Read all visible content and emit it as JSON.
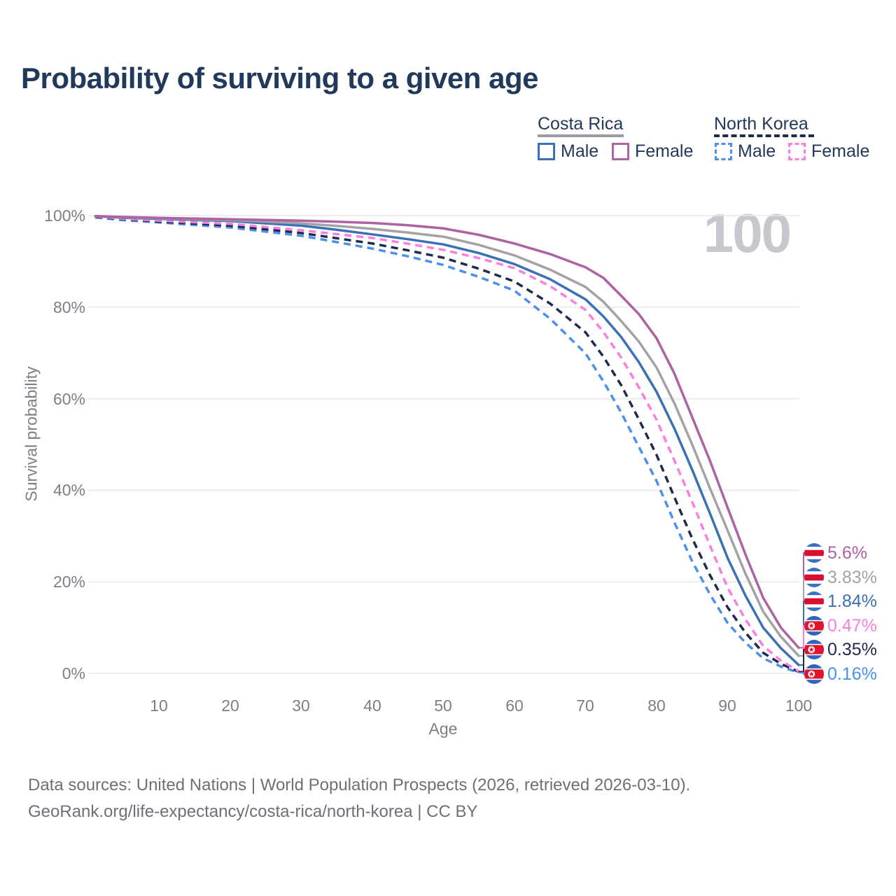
{
  "header": {
    "title": "Probability of surviving to a given age"
  },
  "legend": {
    "groups": [
      {
        "label": "Costa Rica",
        "line_style": "solid",
        "line_color": "#9b9ba1",
        "items": [
          {
            "label": "Male",
            "color": "#3b70b7",
            "style": "solid"
          },
          {
            "label": "Female",
            "color": "#ad62a2",
            "style": "solid"
          }
        ]
      },
      {
        "label": "North Korea",
        "line_style": "dashed",
        "line_color": "#1d2c4d",
        "items": [
          {
            "label": "Male",
            "color": "#4a90ec",
            "style": "dashed"
          },
          {
            "label": "Female",
            "color": "#fc7ede",
            "style": "dashed"
          }
        ]
      }
    ]
  },
  "chart_data": {
    "type": "line",
    "title": "Probability of surviving to a given age",
    "xlabel": "Age",
    "ylabel": "Survival probability",
    "xlim": [
      0,
      100
    ],
    "ylim": [
      0,
      100
    ],
    "grid": "horizontal",
    "grid_values": [
      0,
      20,
      40,
      60,
      80,
      100
    ],
    "x_tick_labels": [
      "10",
      "20",
      "30",
      "40",
      "50",
      "60",
      "70",
      "80",
      "90",
      "100"
    ],
    "y_tick_labels": [
      "100%",
      "80%",
      "60%",
      "40%",
      "20%",
      "0%"
    ],
    "watermark": "100",
    "x": [
      1,
      5,
      10,
      15,
      20,
      25,
      30,
      35,
      40,
      45,
      50,
      55,
      60,
      65,
      70,
      72.5,
      75,
      77.5,
      80,
      82.5,
      85,
      87.5,
      90,
      92.5,
      95,
      97.5,
      100
    ],
    "series": [
      {
        "name": "Costa Rica Female",
        "country": "Costa Rica",
        "sex": "Female",
        "color": "#ad62a2",
        "style": "solid",
        "end_label": "5.6%",
        "values": [
          99.9,
          99.7,
          99.5,
          99.35,
          99.2,
          99.05,
          98.9,
          98.65,
          98.4,
          97.9,
          97.2,
          95.8,
          93.9,
          91.6,
          88.7,
          86.4,
          82.5,
          78.5,
          73.2,
          65.5,
          56.0,
          46.5,
          36.2,
          26.0,
          16.5,
          10.0,
          5.6
        ]
      },
      {
        "name": "Costa Rica Total",
        "country": "Costa Rica",
        "sex": "Total",
        "color": "#a2a2a7",
        "style": "solid",
        "end_label": "3.83%",
        "values": [
          99.9,
          99.6,
          99.4,
          99.2,
          99.0,
          98.7,
          98.3,
          97.75,
          97.1,
          96.3,
          95.4,
          93.6,
          91.3,
          88.2,
          84.4,
          81.2,
          77.0,
          72.5,
          66.8,
          59.0,
          50.0,
          40.5,
          31.2,
          21.8,
          13.5,
          8.0,
          3.83
        ]
      },
      {
        "name": "Costa Rica Male",
        "country": "Costa Rica",
        "sex": "Male",
        "color": "#3b70b7",
        "style": "solid",
        "end_label": "1.84%",
        "values": [
          99.9,
          99.5,
          99.3,
          99.05,
          98.8,
          98.3,
          97.8,
          96.9,
          95.9,
          94.85,
          93.7,
          91.8,
          89.4,
          86.1,
          81.7,
          78.0,
          73.5,
          68.0,
          61.5,
          53.5,
          44.5,
          35.0,
          25.2,
          17.0,
          10.0,
          5.5,
          1.84
        ]
      },
      {
        "name": "North Korea Female",
        "country": "North Korea",
        "sex": "Female",
        "color": "#fc7ede",
        "style": "dashed",
        "end_label": "0.47%",
        "values": [
          99.8,
          99.3,
          98.9,
          98.55,
          98.2,
          97.5,
          96.8,
          95.95,
          95.1,
          93.85,
          92.5,
          90.7,
          88.5,
          84.6,
          79.4,
          74.6,
          69.0,
          62.5,
          55.4,
          46.5,
          37.5,
          28.0,
          18.7,
          11.8,
          6.0,
          2.8,
          0.47
        ]
      },
      {
        "name": "North Korea Total",
        "country": "North Korea",
        "sex": "Total",
        "color": "#1d2c4d",
        "style": "dashed",
        "end_label": "0.35%",
        "values": [
          99.7,
          99.2,
          98.7,
          98.25,
          97.8,
          97.0,
          96.2,
          95.05,
          93.9,
          92.4,
          90.8,
          88.4,
          85.6,
          80.8,
          74.5,
          69.2,
          63.0,
          55.5,
          47.7,
          38.5,
          29.5,
          21.5,
          14.4,
          8.9,
          4.5,
          2.1,
          0.35
        ]
      },
      {
        "name": "North Korea Male",
        "country": "North Korea",
        "sex": "Male",
        "color": "#4a90ec",
        "style": "dashed",
        "end_label": "0.16%",
        "values": [
          99.6,
          99.0,
          98.5,
          97.95,
          97.4,
          96.5,
          95.6,
          94.2,
          92.8,
          91.1,
          89.2,
          86.6,
          83.6,
          77.5,
          69.9,
          63.8,
          57.0,
          49.5,
          42.0,
          33.0,
          24.5,
          17.3,
          11.0,
          6.7,
          3.3,
          1.5,
          0.16
        ]
      }
    ],
    "end_labels": [
      {
        "text": "5.6%",
        "value": 5.6,
        "color": "#ad62a2",
        "flag": "costa-rica"
      },
      {
        "text": "3.83%",
        "value": 3.83,
        "color": "#a2a2a7",
        "flag": "costa-rica"
      },
      {
        "text": "1.84%",
        "value": 1.84,
        "color": "#3b70b7",
        "flag": "costa-rica"
      },
      {
        "text": "0.47%",
        "value": 0.47,
        "color": "#fc7ede",
        "flag": "north-korea"
      },
      {
        "text": "0.35%",
        "value": 0.35,
        "color": "#1d2c4d",
        "flag": "north-korea"
      },
      {
        "text": "0.16%",
        "value": 0.16,
        "color": "#4a90ec",
        "flag": "north-korea"
      }
    ]
  },
  "footer": {
    "line1": "Data sources: United Nations | World Population Prospects (2026, retrieved 2026-03-10).",
    "line2": "GeoRank.org/life-expectancy/costa-rica/north-korea | CC BY"
  }
}
